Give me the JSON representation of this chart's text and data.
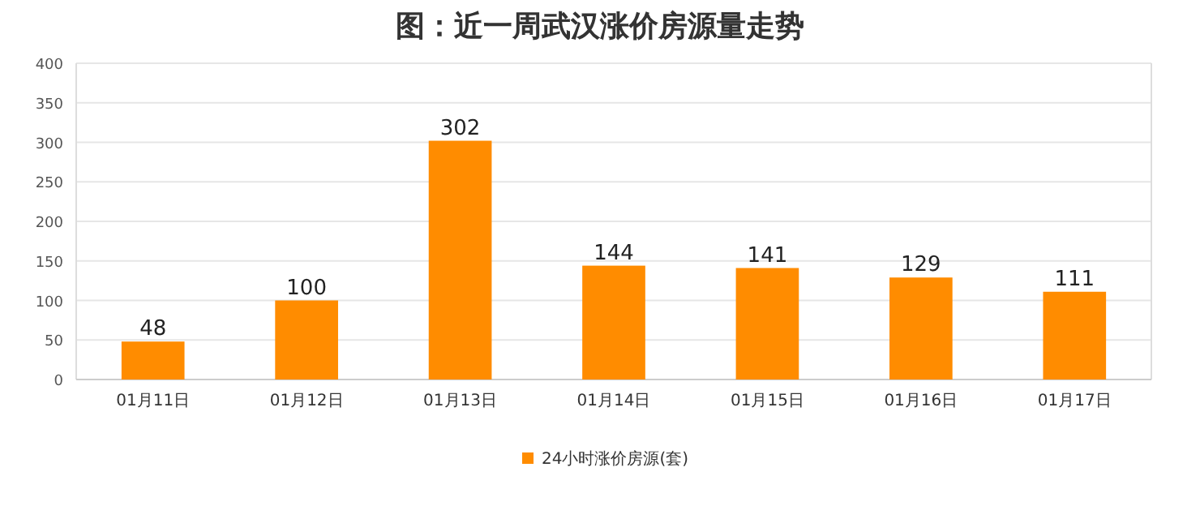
{
  "chart_data": {
    "type": "bar",
    "title": "图：近一周武汉涨价房源量走势",
    "categories": [
      "01月11日",
      "01月12日",
      "01月13日",
      "01月14日",
      "01月15日",
      "01月16日",
      "01月17日"
    ],
    "series": [
      {
        "name": "24小时涨价房源(套)",
        "color": "#ff8c00",
        "values": [
          48,
          100,
          302,
          144,
          141,
          129,
          111
        ]
      }
    ],
    "ylim": [
      0,
      400
    ],
    "yticks": [
      0,
      50,
      100,
      150,
      200,
      250,
      300,
      350,
      400
    ],
    "grid": "y",
    "legend": "bottom",
    "data_labels": true
  }
}
